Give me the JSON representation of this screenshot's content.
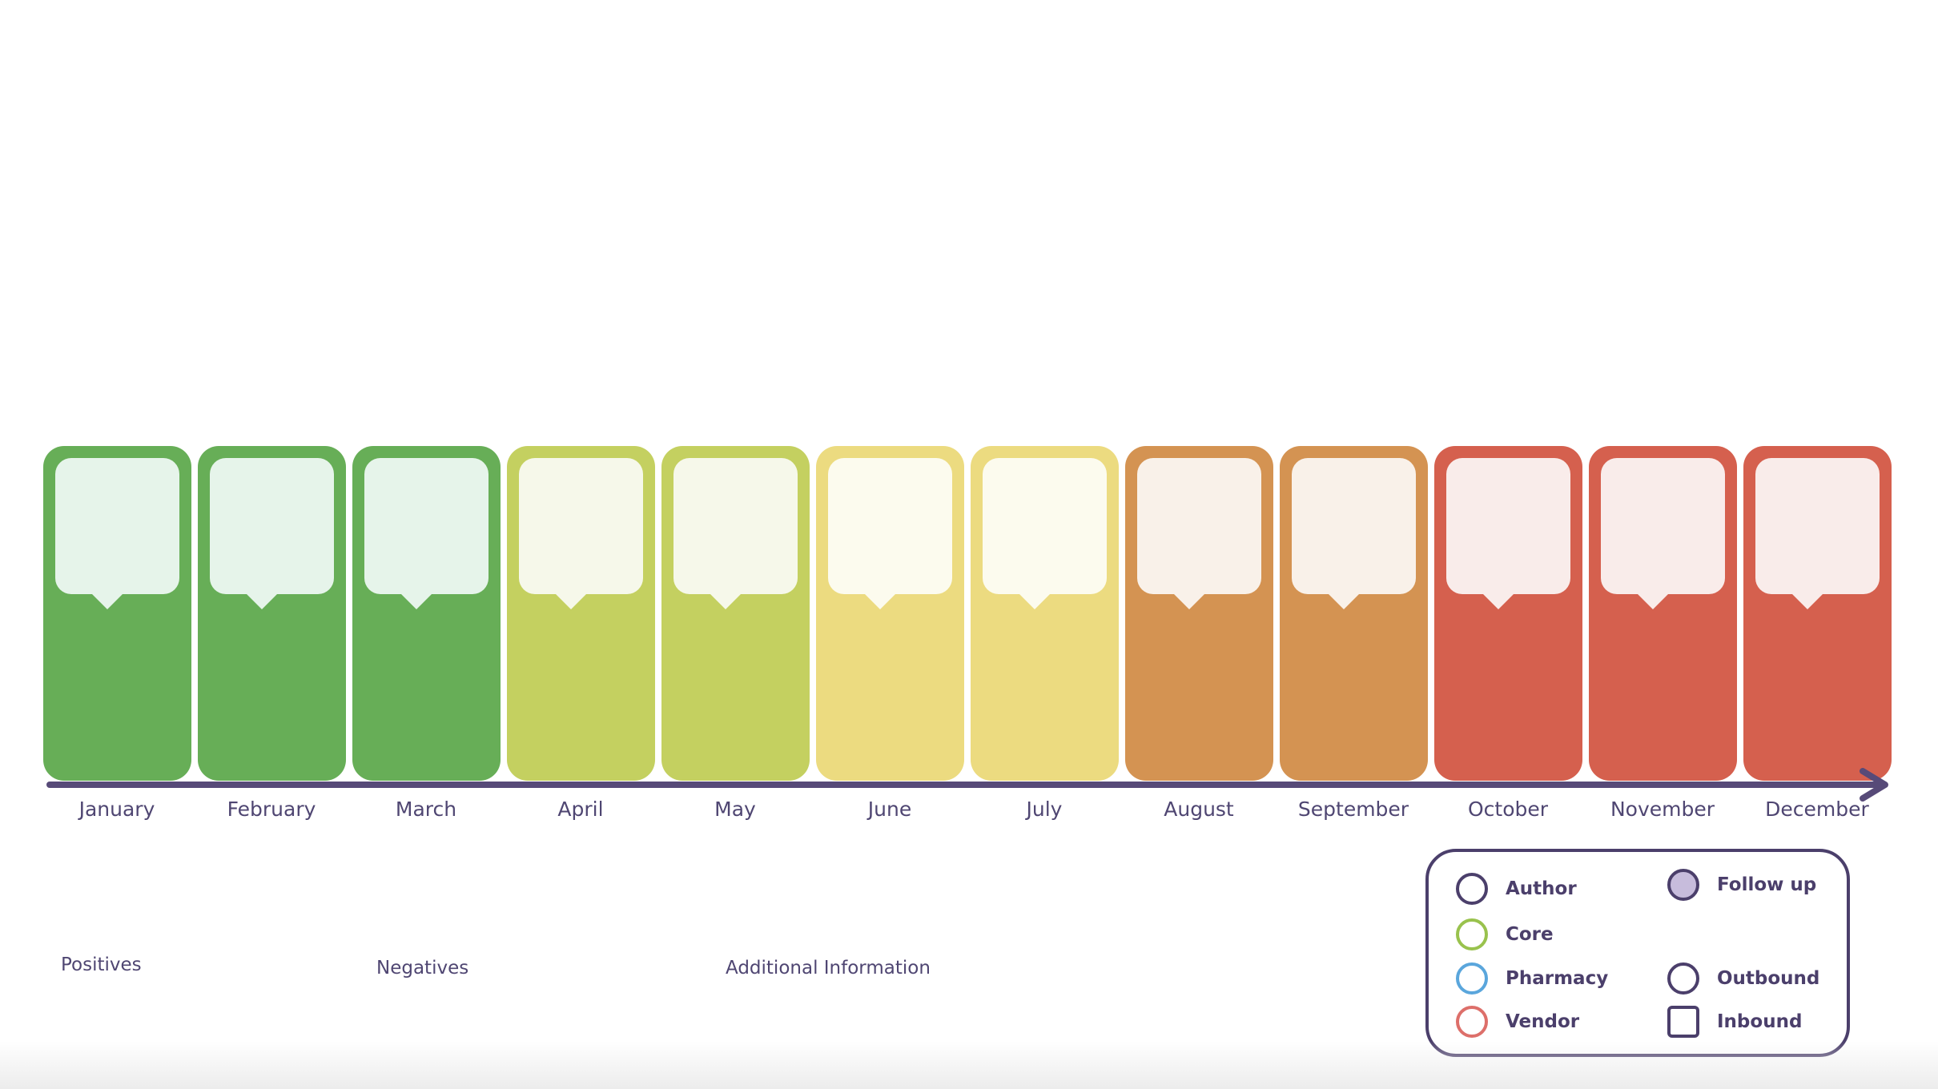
{
  "colors": {
    "axis": "#574a78",
    "green_card": "#67ae57",
    "green_bubble": "#e6f4ea",
    "lime_card": "#c4d060",
    "lime_bubble": "#f6f8ea",
    "yellow_card": "#ecdb80",
    "yellow_bubble": "#fcfbee",
    "orange_card": "#d49352",
    "orange_bubble": "#f9f1e9",
    "red_card": "#d5604e",
    "red_bubble": "#f9ecea"
  },
  "months": [
    {
      "label": "January",
      "color_group": "green"
    },
    {
      "label": "February",
      "color_group": "green"
    },
    {
      "label": "March",
      "color_group": "green"
    },
    {
      "label": "April",
      "color_group": "lime"
    },
    {
      "label": "May",
      "color_group": "lime"
    },
    {
      "label": "June",
      "color_group": "yellow"
    },
    {
      "label": "July",
      "color_group": "yellow"
    },
    {
      "label": "August",
      "color_group": "orange"
    },
    {
      "label": "September",
      "color_group": "orange"
    },
    {
      "label": "October",
      "color_group": "red"
    },
    {
      "label": "November",
      "color_group": "red"
    },
    {
      "label": "December",
      "color_group": "red"
    }
  ],
  "sections": {
    "positives": "Positives",
    "negatives": "Negatives",
    "additional": "Additional Information"
  },
  "legend": {
    "author": {
      "label": "Author",
      "color": "#4b3f6b",
      "icon": "circle-outline"
    },
    "core": {
      "label": "Core",
      "color": "#99c24d",
      "icon": "circle-outline"
    },
    "pharmacy": {
      "label": "Pharmacy",
      "color": "#5aa6dc",
      "icon": "circle-outline"
    },
    "vendor": {
      "label": "Vendor",
      "color": "#dd6f6a",
      "icon": "circle-outline"
    },
    "follow_up": {
      "label": "Follow up",
      "color": "#c7bcdc",
      "icon": "circle-filled"
    },
    "outbound": {
      "label": "Outbound",
      "color": "#4b3f6b",
      "icon": "circle-outline"
    },
    "inbound": {
      "label": "Inbound",
      "color": "#4b3f6b",
      "icon": "square-outline"
    }
  }
}
